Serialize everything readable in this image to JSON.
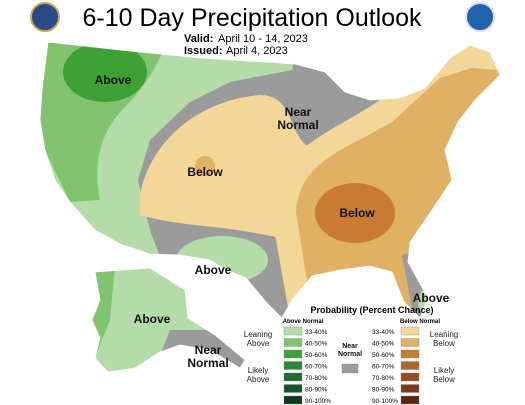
{
  "header": {
    "title": "6-10 Day Precipitation Outlook",
    "valid_label": "Valid:",
    "valid": "April 10 - 14, 2023",
    "issued_label": "Issued:",
    "issued": "April 4, 2023"
  },
  "map_labels": [
    "Above",
    "Near Normal",
    "Below",
    "Below",
    "Above",
    "Above",
    "Above",
    "Near Normal"
  ],
  "legend": {
    "title": "Probability (Percent Chance)",
    "above_header": "Above Normal",
    "below_header": "Below Normal",
    "near_label": "Near Normal",
    "near_color": "#9b9b9b",
    "leaning_above": "Leaning Above",
    "likely_above": "Likely Above",
    "leaning_below": "Leaning Below",
    "likely_below": "Likely Below",
    "above": [
      {
        "label": "33-40%",
        "color": "#b3dca8"
      },
      {
        "label": "40-50%",
        "color": "#80c46f"
      },
      {
        "label": "50-60%",
        "color": "#3ea133"
      },
      {
        "label": "60-70%",
        "color": "#268a3b"
      },
      {
        "label": "70-80%",
        "color": "#1a6d34"
      },
      {
        "label": "80-90%",
        "color": "#135428"
      },
      {
        "label": "90-100%",
        "color": "#0b3a1b"
      }
    ],
    "below": [
      {
        "label": "33-40%",
        "color": "#f3d798"
      },
      {
        "label": "40-50%",
        "color": "#e0b064"
      },
      {
        "label": "50-60%",
        "color": "#c97a33"
      },
      {
        "label": "60-70%",
        "color": "#b0652b"
      },
      {
        "label": "70-80%",
        "color": "#954d22"
      },
      {
        "label": "80-90%",
        "color": "#7b3a17"
      },
      {
        "label": "90-100%",
        "color": "#5a2611"
      }
    ]
  }
}
